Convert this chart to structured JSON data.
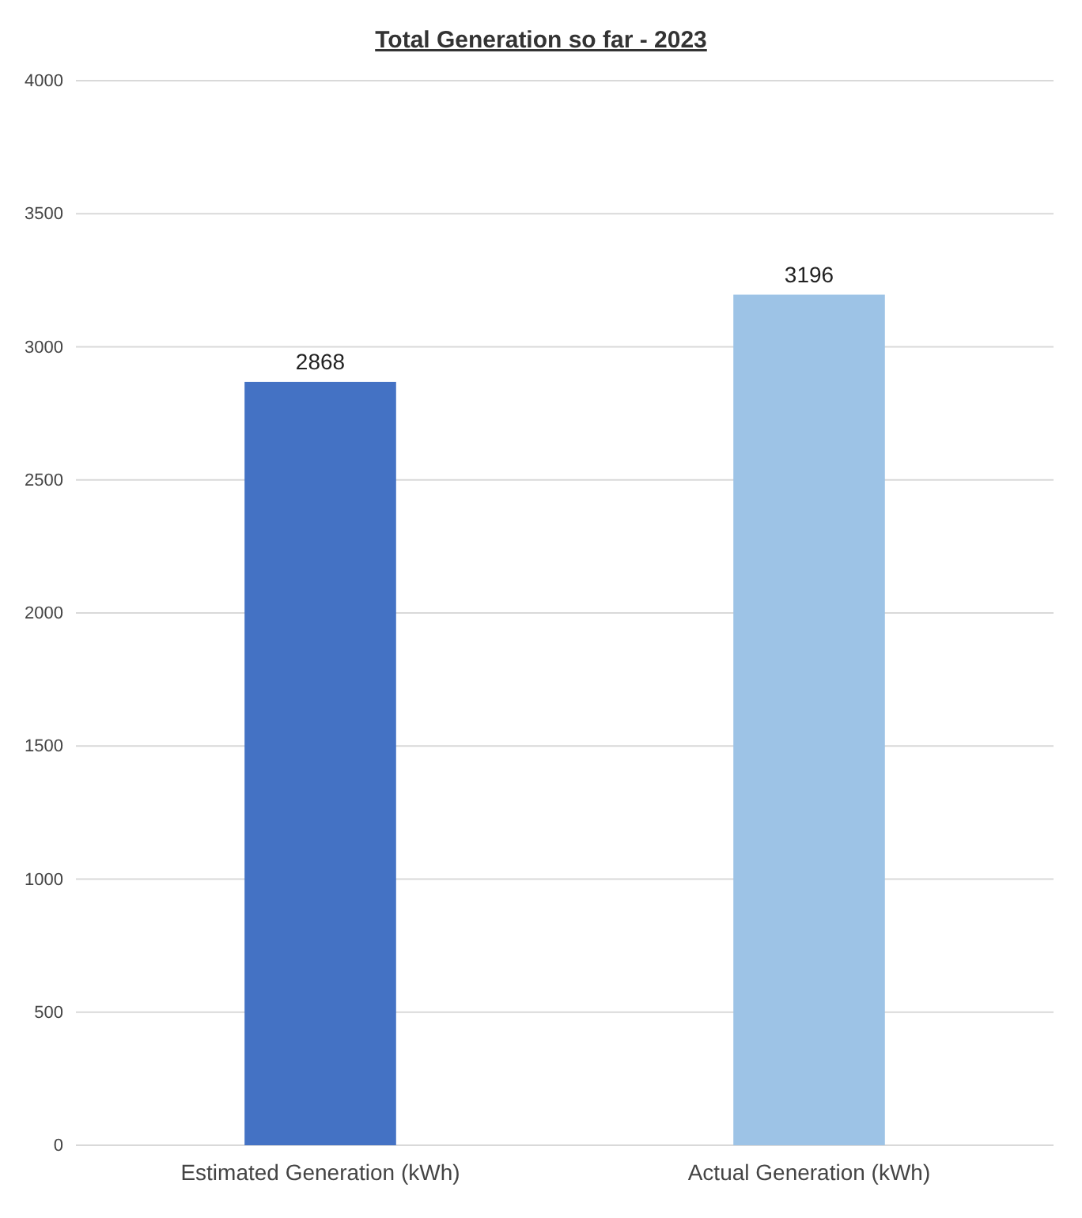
{
  "chart_data": {
    "type": "bar",
    "title": "Total Generation so far - 2023",
    "categories": [
      "Estimated Generation (kWh)",
      "Actual Generation (kWh)"
    ],
    "values": [
      2868,
      3196
    ],
    "colors": [
      "#4472c4",
      "#9dc3e6"
    ],
    "ylim": [
      0,
      4000
    ],
    "yticks": [
      0,
      500,
      1000,
      1500,
      2000,
      2500,
      3000,
      3500,
      4000
    ],
    "grid": "y",
    "data_labels": true
  }
}
